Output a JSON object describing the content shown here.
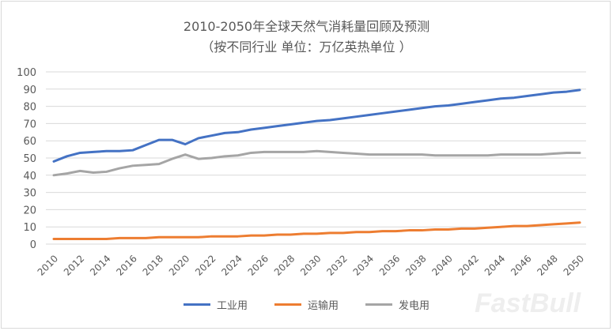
{
  "chart_data": {
    "type": "line",
    "title": "2010-2050年全球天然气消耗量回顾及预测",
    "subtitle": "（按不同行业 单位：万亿英热单位 ）",
    "xlabel": "",
    "ylabel": "",
    "ylim": [
      0,
      100
    ],
    "yticks": [
      0,
      10,
      20,
      30,
      40,
      50,
      60,
      70,
      80,
      90,
      100
    ],
    "x": [
      2010,
      2011,
      2012,
      2013,
      2014,
      2015,
      2016,
      2017,
      2018,
      2019,
      2020,
      2021,
      2022,
      2023,
      2024,
      2025,
      2026,
      2027,
      2028,
      2029,
      2030,
      2031,
      2032,
      2033,
      2034,
      2035,
      2036,
      2037,
      2038,
      2039,
      2040,
      2041,
      2042,
      2043,
      2044,
      2045,
      2046,
      2047,
      2048,
      2049,
      2050
    ],
    "xtick_labels": [
      "2010",
      "2012",
      "2014",
      "2016",
      "2018",
      "2020",
      "2022",
      "2024",
      "2026",
      "2028",
      "2030",
      "2032",
      "2034",
      "2036",
      "2038",
      "2040",
      "2042",
      "2044",
      "2046",
      "2048",
      "2050"
    ],
    "grid": true,
    "legend_position": "bottom",
    "series": [
      {
        "name": "工业用",
        "color": "#4472c4",
        "values": [
          48,
          51,
          53,
          53.5,
          54,
          54,
          54.5,
          57.5,
          60.5,
          60.5,
          58,
          61.5,
          63,
          64.5,
          65,
          66.5,
          67.5,
          68.5,
          69.5,
          70.5,
          71.5,
          72,
          73,
          74,
          75,
          76,
          77,
          78,
          79,
          80,
          80.5,
          81.5,
          82.5,
          83.5,
          84.5,
          85,
          86,
          87,
          88,
          88.5,
          89.5
        ]
      },
      {
        "name": "运输用",
        "color": "#ed7d31",
        "values": [
          3,
          3,
          3,
          3,
          3,
          3.5,
          3.5,
          3.5,
          4,
          4,
          4,
          4,
          4.5,
          4.5,
          4.5,
          5,
          5,
          5.5,
          5.5,
          6,
          6,
          6.5,
          6.5,
          7,
          7,
          7.5,
          7.5,
          8,
          8,
          8.5,
          8.5,
          9,
          9,
          9.5,
          10,
          10.5,
          10.5,
          11,
          11.5,
          12,
          12.5
        ]
      },
      {
        "name": "发电用",
        "color": "#a5a5a5",
        "values": [
          40,
          41,
          42.5,
          41.5,
          42,
          44,
          45.5,
          46,
          46.5,
          49.5,
          52,
          49.5,
          50,
          51,
          51.5,
          53,
          53.5,
          53.5,
          53.5,
          53.5,
          54,
          53.5,
          53,
          52.5,
          52,
          52,
          52,
          52,
          52,
          51.5,
          51.5,
          51.5,
          51.5,
          51.5,
          52,
          52,
          52,
          52,
          52.5,
          53,
          53
        ]
      }
    ]
  },
  "watermark": "FastBull"
}
